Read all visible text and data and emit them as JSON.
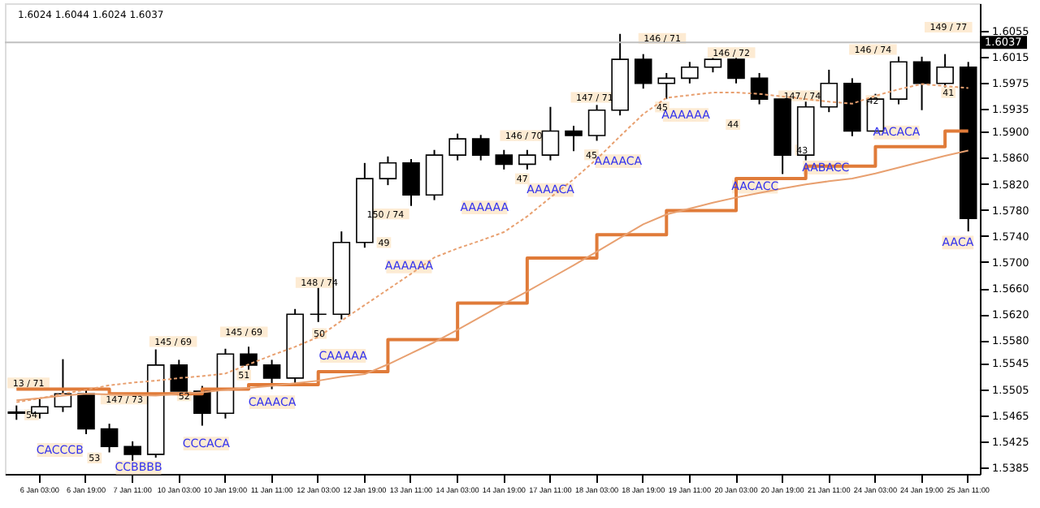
{
  "chart_data": {
    "type": "candlestick",
    "categories": [
      null,
      "6 Jan 03:00",
      null,
      "6 Jan 19:00",
      null,
      "7 Jan 11:00",
      null,
      "10 Jan 03:00",
      null,
      "10 Jan 19:00",
      null,
      "11 Jan 11:00",
      null,
      "12 Jan 03:00",
      null,
      "12 Jan 19:00",
      null,
      "13 Jan 11:00",
      null,
      "14 Jan 03:00",
      null,
      "14 Jan 19:00",
      null,
      "17 Jan 11:00",
      null,
      "18 Jan 03:00",
      null,
      "18 Jan 19:00",
      null,
      "19 Jan 11:00",
      null,
      "20 Jan 03:00",
      null,
      "20 Jan 19:00",
      null,
      "21 Jan 11:00",
      null,
      "24 Jan 03:00",
      null,
      "24 Jan 19:00",
      null,
      "25 Jan 11:00"
    ],
    "ohlc": [
      [
        1.547,
        1.548,
        1.5458,
        1.5468
      ],
      [
        1.5468,
        1.549,
        1.546,
        1.5478
      ],
      [
        1.5478,
        1.5551,
        1.547,
        1.5498
      ],
      [
        1.5498,
        1.5505,
        1.5436,
        1.5444
      ],
      [
        1.5444,
        1.5452,
        1.5408,
        1.5417
      ],
      [
        1.5417,
        1.5425,
        1.539,
        1.5405
      ],
      [
        1.5405,
        1.5566,
        1.54,
        1.5542
      ],
      [
        1.5542,
        1.555,
        1.5494,
        1.5502
      ],
      [
        1.5502,
        1.551,
        1.5449,
        1.5468
      ],
      [
        1.5468,
        1.5567,
        1.546,
        1.5559
      ],
      [
        1.5559,
        1.557,
        1.5534,
        1.5542
      ],
      [
        1.5542,
        1.555,
        1.5505,
        1.5522
      ],
      [
        1.5522,
        1.5628,
        1.5514,
        1.562
      ],
      [
        1.562,
        1.5661,
        1.5608,
        1.562
      ],
      [
        1.562,
        1.5747,
        1.5612,
        1.573
      ],
      [
        1.573,
        1.5852,
        1.5722,
        1.5828
      ],
      [
        1.5828,
        1.5862,
        1.5818,
        1.5852
      ],
      [
        1.5852,
        1.5858,
        1.5786,
        1.5803
      ],
      [
        1.5803,
        1.5872,
        1.5795,
        1.5864
      ],
      [
        1.5864,
        1.5897,
        1.5856,
        1.5889
      ],
      [
        1.5889,
        1.5895,
        1.5856,
        1.5864
      ],
      [
        1.5864,
        1.5872,
        1.5842,
        1.585
      ],
      [
        1.585,
        1.5872,
        1.5842,
        1.5864
      ],
      [
        1.5864,
        1.5938,
        1.5856,
        1.5901
      ],
      [
        1.5901,
        1.5909,
        1.587,
        1.5894
      ],
      [
        1.5894,
        1.5941,
        1.5886,
        1.5933
      ],
      [
        1.5933,
        1.605,
        1.5925,
        1.6011
      ],
      [
        1.6011,
        1.6019,
        1.5966,
        1.5974
      ],
      [
        1.5974,
        1.599,
        1.595,
        1.5982
      ],
      [
        1.5982,
        1.6007,
        1.5974,
        1.5999
      ],
      [
        1.5999,
        1.6019,
        1.5991,
        1.6011
      ],
      [
        1.6011,
        1.6019,
        1.5974,
        1.5982
      ],
      [
        1.5982,
        1.599,
        1.5942,
        1.595
      ],
      [
        1.595,
        1.5958,
        1.5835,
        1.5864
      ],
      [
        1.5864,
        1.5946,
        1.5856,
        1.5938
      ],
      [
        1.5938,
        1.5995,
        1.593,
        1.5974
      ],
      [
        1.5974,
        1.5982,
        1.5893,
        1.5901
      ],
      [
        1.5901,
        1.5958,
        1.5893,
        1.595
      ],
      [
        1.595,
        1.6015,
        1.5942,
        1.6007
      ],
      [
        1.6007,
        1.6015,
        1.5933,
        1.5974
      ],
      [
        1.5974,
        1.6019,
        1.5966,
        1.5999
      ],
      [
        1.5999,
        1.6007,
        1.5747,
        1.5767
      ]
    ],
    "series": [
      {
        "type": "step",
        "color": "#e07b39",
        "values": [
          1.5505,
          1.5505,
          1.5505,
          1.5505,
          1.5498,
          1.5498,
          1.5498,
          1.5498,
          1.5505,
          1.5505,
          1.5512,
          1.5512,
          1.5512,
          1.5532,
          1.5532,
          1.5532,
          1.5581,
          1.5581,
          1.5581,
          1.5637,
          1.5637,
          1.5637,
          1.5706,
          1.5706,
          1.5706,
          1.5742,
          1.5742,
          1.5742,
          1.5779,
          1.5779,
          1.5779,
          1.5828,
          1.5828,
          1.5828,
          1.5847,
          1.5847,
          1.5847,
          1.5877,
          1.5877,
          1.5877,
          1.5901,
          1.5901
        ]
      },
      {
        "type": "line",
        "color": "#e8a070",
        "values": [
          1.5488,
          1.5491,
          1.5495,
          1.5498,
          1.5497,
          1.5496,
          1.5495,
          1.5498,
          1.55,
          1.5504,
          1.5507,
          1.551,
          1.5514,
          1.5518,
          1.5524,
          1.5528,
          1.5543,
          1.556,
          1.5577,
          1.5596,
          1.5616,
          1.5636,
          1.5655,
          1.5675,
          1.5695,
          1.5716,
          1.5737,
          1.5758,
          1.5773,
          1.5782,
          1.5791,
          1.5799,
          1.5806,
          1.5813,
          1.5819,
          1.5824,
          1.5828,
          1.5836,
          1.5845,
          1.5854,
          1.5863,
          1.5871
        ]
      },
      {
        "type": "line",
        "line_style": "dotted",
        "color": "#e8a070",
        "values": [
          1.5485,
          1.5491,
          1.5498,
          1.5504,
          1.5511,
          1.5515,
          1.5518,
          1.5522,
          1.5525,
          1.5529,
          1.5543,
          1.5557,
          1.557,
          1.5585,
          1.561,
          1.5634,
          1.5658,
          1.5682,
          1.5707,
          1.5721,
          1.5733,
          1.5746,
          1.577,
          1.5799,
          1.5827,
          1.5858,
          1.5893,
          1.5927,
          1.5952,
          1.5956,
          1.596,
          1.596,
          1.5958,
          1.5954,
          1.595,
          1.5946,
          1.5943,
          1.5955,
          1.5965,
          1.5973,
          1.597,
          1.5967
        ]
      }
    ],
    "ylim": [
      1.5375,
      1.6097
    ],
    "yticks": [
      1.6055,
      1.6015,
      1.5975,
      1.5935,
      {
        "value": 1.59,
        "label": "1.5900"
      },
      {
        "value": 1.586,
        "label": "1.5860"
      },
      {
        "value": 1.582,
        "label": "1.5820"
      },
      {
        "value": 1.578,
        "label": "1.5780"
      },
      {
        "value": 1.574,
        "label": "1.5740"
      },
      {
        "value": 1.57,
        "label": "1.5700"
      },
      {
        "value": 1.566,
        "label": "1.5660"
      },
      {
        "value": 1.562,
        "label": "1.5620"
      },
      {
        "value": 1.558,
        "label": "1.5580"
      },
      1.5545,
      1.5505,
      1.5465,
      1.5425,
      1.5385
    ],
    "ref_lines": [
      {
        "axis": "y",
        "value": 1.6037,
        "label": "1.6037",
        "color": "#c0c0c0"
      }
    ],
    "grid": false,
    "annotations": [
      "1.6024 1.6044 1.6024 1.6037",
      "13 / 71",
      "54",
      "147 / 73",
      "53",
      "145 / 69",
      "52",
      "145 / 69",
      "51",
      "148 / 74",
      "50",
      "150 / 74",
      "49",
      "146 / 70",
      "47",
      "147 / 71",
      "45",
      "146 / 71",
      "45",
      "146 / 72",
      "44",
      "147 / 74",
      "43",
      "146 / 74",
      "42",
      "149 / 77",
      "41",
      "CACCCB",
      "CCBBBB",
      "CCCACA",
      "CAAACA",
      "CAAAAA",
      "AAAAAA",
      "AAAAAA",
      "AAAACA",
      "AAAACA",
      "AAAAAA",
      "AACACC",
      "AABACC",
      "AACACA",
      "AACA"
    ]
  }
}
